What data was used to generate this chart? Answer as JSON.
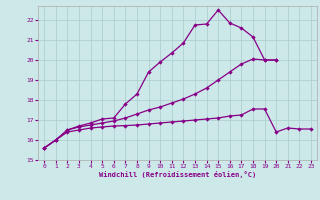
{
  "bg_color": "#cce8e8",
  "grid_color": "#aacccc",
  "line_color": "#880088",
  "xlabel": "Windchill (Refroidissement éolien,°C)",
  "xlim": [
    -0.5,
    23.5
  ],
  "ylim": [
    15,
    22.7
  ],
  "yticks": [
    15,
    16,
    17,
    18,
    19,
    20,
    21,
    22
  ],
  "xticks": [
    0,
    1,
    2,
    3,
    4,
    5,
    6,
    7,
    8,
    9,
    10,
    11,
    12,
    13,
    14,
    15,
    16,
    17,
    18,
    19,
    20,
    21,
    22,
    23
  ],
  "line1_x": [
    0,
    1,
    2,
    3,
    4,
    5,
    6,
    7,
    8,
    9,
    10,
    11,
    12,
    13,
    14,
    15,
    16,
    17,
    18,
    19,
    20
  ],
  "line1_y": [
    15.6,
    16.0,
    16.5,
    16.7,
    16.85,
    17.05,
    17.1,
    17.8,
    18.3,
    19.4,
    19.9,
    20.35,
    20.85,
    21.75,
    21.8,
    22.5,
    21.85,
    21.6,
    21.15,
    20.0,
    20.0
  ],
  "line2_x": [
    0,
    1,
    2,
    3,
    4,
    5,
    6,
    7,
    8,
    9,
    10,
    11,
    12,
    13,
    14,
    15,
    16,
    17,
    18,
    19,
    20
  ],
  "line2_y": [
    15.6,
    16.0,
    16.5,
    16.65,
    16.75,
    16.85,
    16.95,
    17.1,
    17.3,
    17.5,
    17.65,
    17.85,
    18.05,
    18.3,
    18.6,
    19.0,
    19.4,
    19.8,
    20.05,
    20.0,
    20.0
  ],
  "line3_x": [
    0,
    1,
    2,
    3,
    4,
    5,
    6,
    7,
    8,
    9,
    10,
    11,
    12,
    13,
    14,
    15,
    16,
    17,
    18,
    19,
    20,
    21,
    22,
    23
  ],
  "line3_y": [
    15.6,
    16.0,
    16.4,
    16.5,
    16.6,
    16.65,
    16.7,
    16.72,
    16.75,
    16.8,
    16.85,
    16.9,
    16.95,
    17.0,
    17.05,
    17.1,
    17.2,
    17.25,
    17.55,
    17.55,
    16.4,
    16.6,
    16.55,
    16.55
  ]
}
